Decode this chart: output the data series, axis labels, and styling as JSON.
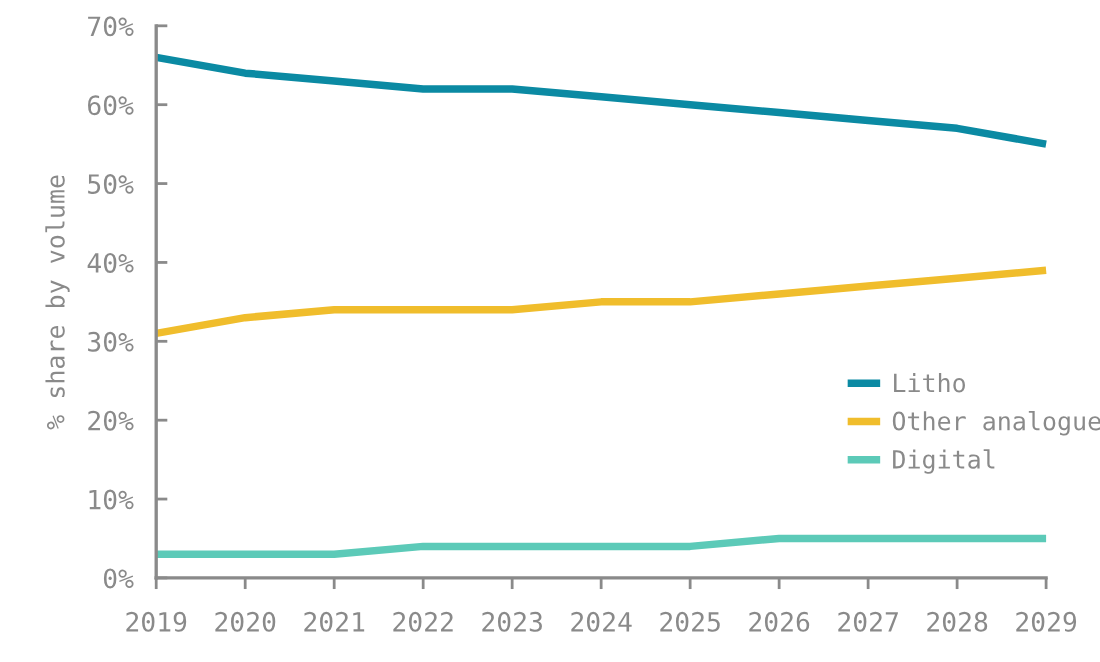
{
  "chart_data": {
    "type": "line",
    "x": [
      2019,
      2020,
      2021,
      2022,
      2023,
      2024,
      2025,
      2026,
      2027,
      2028,
      2029
    ],
    "series": [
      {
        "name": "Litho",
        "color": "#0b8aa3",
        "values": [
          66,
          64,
          63,
          62,
          62,
          61,
          60,
          59,
          58,
          57,
          55
        ]
      },
      {
        "name": "Other analogue",
        "color": "#f0bd2c",
        "values": [
          31,
          33,
          34,
          34,
          34,
          35,
          35,
          36,
          37,
          38,
          39
        ]
      },
      {
        "name": "Digital",
        "color": "#5ccab8",
        "values": [
          3,
          3,
          3,
          4,
          4,
          4,
          4,
          5,
          5,
          5,
          5
        ]
      }
    ],
    "ylabel": "% share by volume",
    "xlim": [
      2019,
      2029
    ],
    "xticks": [
      2019,
      2020,
      2021,
      2022,
      2023,
      2024,
      2025,
      2026,
      2027,
      2028,
      2029
    ],
    "ylim": [
      0,
      70
    ],
    "yticks": [
      {
        "value": 0,
        "label": "0%"
      },
      {
        "value": 10,
        "label": "10%"
      },
      {
        "value": 20,
        "label": "20%"
      },
      {
        "value": 30,
        "label": "30%"
      },
      {
        "value": 40,
        "label": "40%"
      },
      {
        "value": 50,
        "label": "50%"
      },
      {
        "value": 60,
        "label": "60%"
      },
      {
        "value": 70,
        "label": "70%"
      }
    ],
    "grid": false,
    "legend": "right",
    "marker": "none",
    "line_style": "solid"
  }
}
